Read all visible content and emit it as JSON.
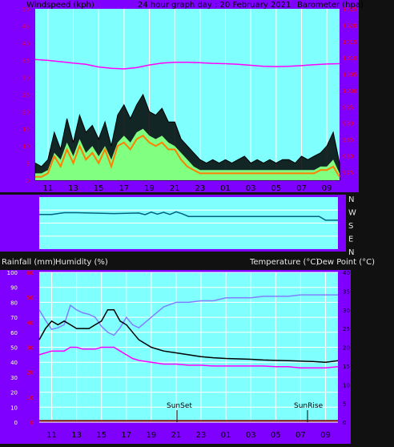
{
  "page": {
    "title": "24 hour graph day : 20 February 2021",
    "wind_title": "Windspeed (kph)",
    "baro_title": "Barometer (hpa)",
    "rain_title": "Rainfall (mm)",
    "hum_title": "Humidity (%)",
    "temp_title": "Temperature (°C)",
    "dew_title": "Dew Point (°C)",
    "sunset_label": "SunSet",
    "sunrise_label": "SunRise"
  },
  "colors": {
    "frame": "#8000ff",
    "plot_bg": "#80ffff",
    "page_bg": "#111111",
    "wind_gust": "#000000",
    "wind_avg": "#80ff80",
    "wind_speed": "#ff8000",
    "barometer": "#ff00ff",
    "direction": "#006080",
    "temperature": "#000000",
    "dewpoint": "#ff00ff",
    "humidity": "#8080ff",
    "rainfall": "#800000",
    "axis_red": "#ff0000"
  },
  "chart_data": [
    {
      "type": "line",
      "name": "wind-barometer",
      "x_labels": [
        "11",
        "13",
        "15",
        "17",
        "19",
        "21",
        "23",
        "01",
        "03",
        "05",
        "07",
        "09"
      ],
      "wind_ylim": [
        0,
        50
      ],
      "wind_ticks": [
        "0",
        "5",
        "10",
        "15",
        "20",
        "25",
        "30",
        "35",
        "40",
        "45",
        "50"
      ],
      "baro_ylim": [
        972.5,
        1025
      ],
      "baro_ticks": [
        "975",
        "980",
        "985",
        "990",
        "995",
        "1000",
        "1005",
        "1010",
        "1015",
        "1020",
        "1025"
      ],
      "series": [
        {
          "key": "gust",
          "hours": [
            0,
            0.5,
            1,
            1.5,
            2,
            2.5,
            3,
            3.5,
            4,
            4.5,
            5,
            5.5,
            6,
            6.5,
            7,
            7.5,
            8,
            8.5,
            9,
            9.5,
            10,
            10.5,
            11,
            11.5,
            12,
            12.5,
            13,
            13.5,
            14,
            14.5,
            15,
            15.5,
            16,
            16.5,
            17,
            17.5,
            18,
            18.5,
            19,
            19.5,
            20,
            20.5,
            21,
            21.5,
            22,
            22.5,
            23,
            23.5,
            24
          ],
          "values": [
            5,
            4,
            6,
            14,
            9,
            18,
            11,
            19,
            14,
            16,
            12,
            17,
            10,
            19,
            22,
            18,
            22,
            25,
            20,
            19,
            21,
            17,
            17,
            12,
            10,
            8,
            6,
            5,
            6,
            5,
            6,
            5,
            6,
            7,
            5,
            6,
            5,
            6,
            5,
            6,
            6,
            5,
            7,
            6,
            7,
            8,
            10,
            14,
            5
          ]
        },
        {
          "key": "avg",
          "hours": [
            0,
            0.5,
            1,
            1.5,
            2,
            2.5,
            3,
            3.5,
            4,
            4.5,
            5,
            5.5,
            6,
            6.5,
            7,
            7.5,
            8,
            8.5,
            9,
            9.5,
            10,
            10.5,
            11,
            11.5,
            12,
            12.5,
            13,
            13.5,
            14,
            14.5,
            15,
            15.5,
            16,
            16.5,
            17,
            17.5,
            18,
            18.5,
            19,
            19.5,
            20,
            20.5,
            21,
            21.5,
            22,
            22.5,
            23,
            23.5,
            24
          ],
          "values": [
            2,
            2,
            3,
            8,
            6,
            11,
            7,
            12,
            8,
            10,
            7,
            10,
            6,
            11,
            13,
            11,
            14,
            15,
            13,
            12,
            13,
            11,
            10,
            8,
            6,
            4,
            3,
            3,
            3,
            3,
            3,
            3,
            3,
            3,
            3,
            3,
            3,
            3,
            3,
            3,
            3,
            3,
            3,
            3,
            3,
            4,
            4,
            6,
            2
          ]
        },
        {
          "key": "speed",
          "hours": [
            0,
            0.5,
            1,
            1.5,
            2,
            2.5,
            3,
            3.5,
            4,
            4.5,
            5,
            5.5,
            6,
            6.5,
            7,
            7.5,
            8,
            8.5,
            9,
            9.5,
            10,
            10.5,
            11,
            11.5,
            12,
            12.5,
            13,
            13.5,
            14,
            14.5,
            15,
            15.5,
            16,
            16.5,
            17,
            17.5,
            18,
            18.5,
            19,
            19.5,
            20,
            20.5,
            21,
            21.5,
            22,
            22.5,
            23,
            23.5,
            24
          ],
          "values": [
            1,
            1,
            2,
            7,
            4,
            9,
            5,
            10,
            6,
            8,
            5,
            9,
            4,
            10,
            11,
            9,
            12,
            13,
            11,
            10,
            11,
            9,
            9,
            6,
            4,
            3,
            2,
            2,
            2,
            2,
            2,
            2,
            2,
            2,
            2,
            2,
            2,
            2,
            2,
            2,
            2,
            2,
            2,
            2,
            2,
            3,
            3,
            4,
            1
          ]
        },
        {
          "key": "barometer",
          "hours": [
            0,
            1,
            2,
            3,
            4,
            5,
            6,
            7,
            8,
            9,
            10,
            11,
            12,
            13,
            14,
            15,
            16,
            17,
            18,
            19,
            20,
            21,
            22,
            23,
            24
          ],
          "values": [
            1009.5,
            1009.2,
            1008.8,
            1008.4,
            1008.0,
            1007.2,
            1006.8,
            1006.6,
            1007.0,
            1007.8,
            1008.4,
            1008.6,
            1008.6,
            1008.5,
            1008.3,
            1008.2,
            1008.0,
            1007.7,
            1007.4,
            1007.3,
            1007.4,
            1007.6,
            1007.9,
            1008.1,
            1008.2
          ]
        }
      ]
    },
    {
      "type": "line",
      "name": "wind-direction",
      "y_labels": [
        "N",
        "W",
        "S",
        "E",
        "N"
      ],
      "ylim": [
        0,
        360
      ],
      "series": [
        {
          "key": "direction",
          "hours": [
            0,
            1,
            2,
            3,
            4,
            5,
            6,
            7,
            8,
            8.5,
            9,
            9.5,
            10,
            10.5,
            11,
            11.5,
            12,
            13,
            14,
            15,
            16,
            17,
            18,
            19,
            20,
            21,
            22,
            22.5,
            23,
            24
          ],
          "values": [
            240,
            240,
            252,
            252,
            250,
            248,
            246,
            248,
            250,
            238,
            256,
            242,
            255,
            240,
            258,
            244,
            226,
            226,
            226,
            226,
            226,
            226,
            226,
            226,
            226,
            226,
            226,
            226,
            200,
            200
          ]
        }
      ]
    },
    {
      "type": "line",
      "name": "temp-humidity",
      "hum_ylim": [
        0,
        100
      ],
      "hum_ticks": [
        "0",
        "10",
        "20",
        "30",
        "40",
        "50",
        "60",
        "70",
        "80",
        "90",
        "100"
      ],
      "rain_ylim": [
        0,
        60
      ],
      "rain_ticks": [
        "0",
        "10",
        "20",
        "30",
        "40",
        "50",
        "60"
      ],
      "temp_ylim": [
        0,
        40
      ],
      "temp_ticks": [
        "0",
        "5",
        "10",
        "15",
        "20",
        "25",
        "30",
        "35",
        "40"
      ],
      "series": [
        {
          "key": "humidity",
          "hours": [
            0,
            0.5,
            1,
            1.5,
            2,
            2.5,
            3,
            3.5,
            4,
            4.5,
            5,
            5.5,
            6,
            6.5,
            7,
            7.5,
            8,
            9,
            10,
            11,
            12,
            13,
            14,
            15,
            16,
            17,
            18,
            19,
            20,
            21,
            22,
            23,
            24
          ],
          "values": [
            75,
            68,
            62,
            63,
            65,
            78,
            75,
            73,
            72,
            70,
            64,
            60,
            58,
            63,
            70,
            65,
            63,
            70,
            77,
            80,
            80,
            81,
            81,
            83,
            83,
            83,
            84,
            84,
            84,
            85,
            85,
            85,
            85
          ]
        },
        {
          "key": "temperature",
          "hours": [
            0,
            0.5,
            1,
            1.5,
            2,
            2.5,
            3,
            3.5,
            4,
            4.5,
            5,
            5.5,
            6,
            6.5,
            7,
            7.5,
            8,
            9,
            10,
            11,
            12,
            13,
            14,
            15,
            16,
            17,
            18,
            19,
            20,
            21,
            22,
            23,
            24
          ],
          "values": [
            22,
            25,
            27,
            26,
            27,
            26,
            25,
            25,
            25,
            26,
            27,
            30,
            30,
            27,
            26,
            24,
            22,
            20,
            19,
            18.5,
            18,
            17.5,
            17.2,
            17,
            16.9,
            16.8,
            16.6,
            16.5,
            16.4,
            16.3,
            16.2,
            16,
            16.4
          ]
        },
        {
          "key": "dewpoint",
          "hours": [
            0,
            0.5,
            1,
            1.5,
            2,
            2.5,
            3,
            3.5,
            4,
            4.5,
            5,
            5.5,
            6,
            6.5,
            7,
            7.5,
            8,
            9,
            10,
            11,
            12,
            13,
            14,
            15,
            16,
            17,
            18,
            19,
            20,
            21,
            22,
            23,
            24
          ],
          "values": [
            18,
            18.5,
            19,
            19,
            19,
            20,
            20,
            19.5,
            19.5,
            19.5,
            20,
            20,
            20,
            19,
            18,
            17,
            16.5,
            16,
            15.5,
            15.5,
            15.2,
            15.2,
            15,
            15,
            15,
            15,
            15,
            14.8,
            14.8,
            14.5,
            14.5,
            14.5,
            14.8
          ]
        },
        {
          "key": "rainfall",
          "hours": [
            0,
            24
          ],
          "values": [
            0.5,
            0.5
          ]
        }
      ]
    }
  ]
}
